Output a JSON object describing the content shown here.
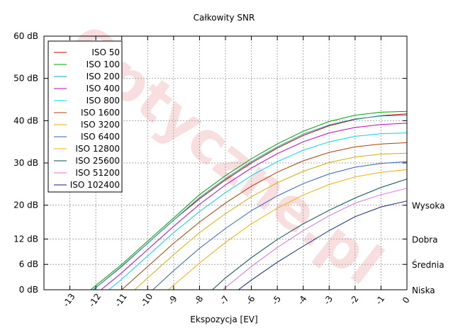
{
  "chart_data": {
    "type": "line",
    "title": "Całkowity SNR",
    "xlabel": "Ekspozycja [EV]",
    "ylabel": "",
    "watermark": "Optyczne.pl",
    "xlim": [
      -14,
      0
    ],
    "ylim": [
      0,
      60
    ],
    "x_ticks": [
      -13,
      -12,
      -11,
      -10,
      -9,
      -8,
      -7,
      -6,
      -5,
      -4,
      -3,
      -2,
      -1,
      0
    ],
    "x_tick_labels": [
      "-13",
      "-12",
      "-11",
      "-10",
      "-9",
      "-8",
      "-7",
      "-6",
      "-5",
      "-4",
      "-3",
      "-2",
      "-1",
      "0"
    ],
    "y_ticks": [
      0,
      6,
      12,
      20,
      30,
      40,
      50,
      60
    ],
    "y_tick_labels": [
      "0 dB",
      "6 dB",
      "12 dB",
      "20 dB",
      "30 dB",
      "40 dB",
      "50 dB",
      "60 dB"
    ],
    "right_labels": [
      {
        "y": 20,
        "text": "Wysoka"
      },
      {
        "y": 12,
        "text": "Dobra"
      },
      {
        "y": 6,
        "text": "Średnia"
      },
      {
        "y": 0,
        "text": "Niska"
      }
    ],
    "grid": true,
    "legend_position": "top-left",
    "series": [
      {
        "name": "ISO 50",
        "color": "#cc0000",
        "x": [
          -12.1,
          -11,
          -10,
          -9,
          -8,
          -7,
          -6,
          -5,
          -4,
          -3,
          -2,
          -1,
          0
        ],
        "y": [
          0,
          5.5,
          11,
          16.5,
          21.5,
          26,
          30,
          33.5,
          36.5,
          38.8,
          40.3,
          41.2,
          41.6
        ]
      },
      {
        "name": "ISO 100",
        "color": "#00a000",
        "x": [
          -12.2,
          -11,
          -10,
          -9,
          -8,
          -7,
          -6,
          -5,
          -4,
          -3,
          -2,
          -1,
          0
        ],
        "y": [
          0,
          6,
          11.5,
          17,
          22.5,
          27,
          31,
          34.5,
          37.5,
          39.8,
          41.3,
          42,
          42.2
        ]
      },
      {
        "name": "ISO 200",
        "color": "#00a8a8",
        "x": [
          -12.1,
          -11,
          -10,
          -9,
          -8,
          -7,
          -6,
          -5,
          -4,
          -3,
          -2,
          -1,
          0
        ],
        "y": [
          0,
          5.6,
          11,
          16.5,
          21.8,
          26.3,
          30.3,
          33.8,
          36.8,
          39,
          40.4,
          41.1,
          41.3
        ]
      },
      {
        "name": "ISO 400",
        "color": "#c000c0",
        "x": [
          -11.8,
          -11,
          -10,
          -9,
          -8,
          -7,
          -6,
          -5,
          -4,
          -3,
          -2,
          -1,
          0
        ],
        "y": [
          0,
          4,
          9.5,
          15,
          20.2,
          24.8,
          28.8,
          32.2,
          35,
          37.1,
          38.4,
          39.1,
          39.4
        ]
      },
      {
        "name": "ISO 800",
        "color": "#00d8e8",
        "x": [
          -11.5,
          -11,
          -10,
          -9,
          -8,
          -7,
          -6,
          -5,
          -4,
          -3,
          -2,
          -1,
          0
        ],
        "y": [
          0,
          2.5,
          8,
          13.5,
          18.5,
          23,
          27,
          30.3,
          33,
          35,
          36.3,
          36.9,
          37.1
        ]
      },
      {
        "name": "ISO 1600",
        "color": "#b04000",
        "x": [
          -11,
          -10,
          -9,
          -8,
          -7,
          -6,
          -5,
          -4,
          -3,
          -2,
          -1,
          0
        ],
        "y": [
          0,
          5.5,
          11,
          16,
          20.5,
          24.5,
          27.8,
          30.5,
          32.5,
          33.8,
          34.5,
          34.8
        ]
      },
      {
        "name": "ISO 3200",
        "color": "#d0b000",
        "x": [
          -10.5,
          -10,
          -9,
          -8,
          -7,
          -6,
          -5,
          -4,
          -3,
          -2,
          -1,
          0
        ],
        "y": [
          0,
          2.8,
          8.3,
          13.5,
          18,
          22,
          25.3,
          28,
          30.1,
          31.4,
          32.1,
          32.3
        ]
      },
      {
        "name": "ISO 6400",
        "color": "#3060c0",
        "x": [
          -9.8,
          -9,
          -8,
          -7,
          -6,
          -5,
          -4,
          -3,
          -2,
          -1,
          0
        ],
        "y": [
          0,
          4.5,
          9.8,
          14.5,
          18.7,
          22.2,
          25.1,
          27.4,
          29,
          29.9,
          30.3
        ]
      },
      {
        "name": "ISO 12800",
        "color": "#f0b000",
        "x": [
          -9.2,
          -8,
          -7,
          -6,
          -5,
          -4,
          -3,
          -2,
          -1,
          0
        ],
        "y": [
          0,
          6.3,
          11.2,
          15.6,
          19.3,
          22.4,
          24.9,
          26.7,
          27.8,
          28.4
        ]
      },
      {
        "name": "ISO 25600",
        "color": "#005050",
        "x": [
          -7.5,
          -7,
          -6,
          -5,
          -4,
          -3,
          -2,
          -1,
          0
        ],
        "y": [
          0,
          2.8,
          7.6,
          11.9,
          15.6,
          18.8,
          21.7,
          24.2,
          26.2
        ]
      },
      {
        "name": "ISO 51200",
        "color": "#e070e0",
        "x": [
          -7.1,
          -6,
          -5,
          -4,
          -3,
          -2,
          -1,
          0
        ],
        "y": [
          0,
          5.5,
          10,
          14,
          17.5,
          20.5,
          22.5,
          24
        ]
      },
      {
        "name": "ISO 102400",
        "color": "#102090",
        "x": [
          -6.5,
          -6,
          -5,
          -4,
          -3,
          -2,
          -1,
          0
        ],
        "y": [
          0,
          2.3,
          6.5,
          10.3,
          14,
          17.3,
          19.6,
          21
        ]
      }
    ]
  }
}
